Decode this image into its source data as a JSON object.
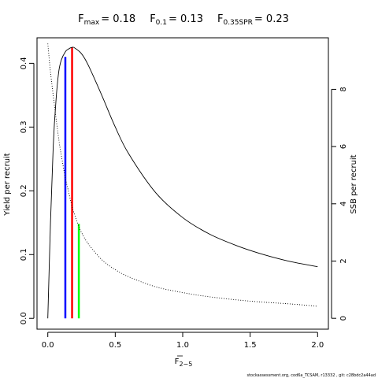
{
  "chart_data": {
    "type": "line",
    "title": {
      "parts": [
        {
          "main": "F",
          "sub": "max",
          "value": "= 0.18"
        },
        {
          "main": "F",
          "sub": "0.1",
          "value": "= 0.13"
        },
        {
          "main": "F",
          "sub": "0.35SPR",
          "value": "= 0.23"
        }
      ]
    },
    "xlabel": {
      "main": "F",
      "sub": "2−5"
    },
    "ylabel_left": "Yield per recruit",
    "ylabel_right": "SSB per recruit",
    "xlim": [
      -0.08,
      2.08
    ],
    "ylim_left": [
      -0.017,
      0.44
    ],
    "ylim_right": [
      -0.38,
      9.8
    ],
    "x_ticks": [
      "0.0",
      "0.5",
      "1.0",
      "1.5",
      "2.0"
    ],
    "y_left_ticks": [
      "0.0",
      "0.1",
      "0.2",
      "0.3",
      "0.4"
    ],
    "y_right_ticks": [
      "0",
      "2",
      "4",
      "6",
      "8"
    ],
    "series": [
      {
        "name": "Yield per recruit",
        "axis": "left",
        "style": "solid",
        "color": "#000000",
        "x": [
          0.0,
          0.02,
          0.04,
          0.06,
          0.08,
          0.1,
          0.13,
          0.15,
          0.18,
          0.2,
          0.25,
          0.3,
          0.4,
          0.5,
          0.6,
          0.8,
          1.0,
          1.2,
          1.4,
          1.6,
          1.8,
          2.0
        ],
        "y": [
          0.0,
          0.15,
          0.27,
          0.34,
          0.385,
          0.405,
          0.418,
          0.422,
          0.425,
          0.424,
          0.415,
          0.397,
          0.35,
          0.3,
          0.258,
          0.197,
          0.158,
          0.132,
          0.114,
          0.1,
          0.089,
          0.081
        ]
      },
      {
        "name": "SSB per recruit",
        "axis": "right",
        "style": "dotted",
        "color": "#000000",
        "x": [
          0.0,
          0.02,
          0.05,
          0.08,
          0.1,
          0.13,
          0.15,
          0.18,
          0.2,
          0.23,
          0.25,
          0.3,
          0.4,
          0.5,
          0.6,
          0.8,
          1.0,
          1.2,
          1.5,
          1.8,
          2.0
        ],
        "y": [
          9.6,
          8.6,
          7.4,
          6.3,
          5.7,
          4.9,
          4.5,
          3.9,
          3.6,
          3.2,
          3.0,
          2.6,
          2.05,
          1.7,
          1.45,
          1.1,
          0.9,
          0.75,
          0.6,
          0.5,
          0.42
        ]
      }
    ],
    "reference_lines": [
      {
        "label": "F0.1",
        "x": 0.13,
        "axis": "left",
        "y_top": 0.41,
        "color": "#0000ff"
      },
      {
        "label": "Fmax",
        "x": 0.18,
        "axis": "left",
        "y_top": 0.425,
        "color": "#ff0000"
      },
      {
        "label": "F0.35SPR",
        "x": 0.23,
        "axis": "right",
        "y_top": 3.3,
        "color": "#00ff00"
      }
    ]
  },
  "footer": "stockassessment.org, cod6a_TCSAM, r13332 , git: c28bdc2a44ad"
}
